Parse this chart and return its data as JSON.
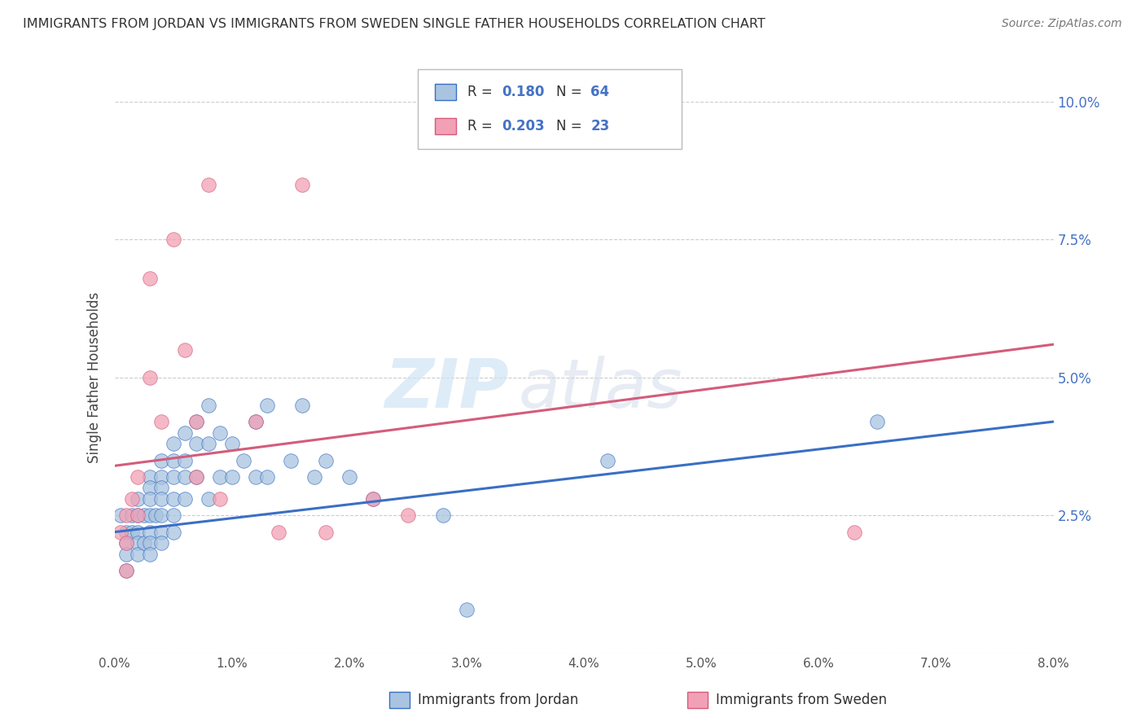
{
  "title": "IMMIGRANTS FROM JORDAN VS IMMIGRANTS FROM SWEDEN SINGLE FATHER HOUSEHOLDS CORRELATION CHART",
  "source": "Source: ZipAtlas.com",
  "ylabel": "Single Father Households",
  "legend_label_blue": "Immigrants from Jordan",
  "legend_label_pink": "Immigrants from Sweden",
  "legend_r_val_blue": "0.180",
  "legend_n_val_blue": "64",
  "legend_r_val_pink": "0.203",
  "legend_n_val_pink": "23",
  "xlim": [
    0.0,
    0.08
  ],
  "ylim": [
    0.0,
    0.1
  ],
  "xticks": [
    0.0,
    0.01,
    0.02,
    0.03,
    0.04,
    0.05,
    0.06,
    0.07,
    0.08
  ],
  "yticks": [
    0.0,
    0.025,
    0.05,
    0.075,
    0.1
  ],
  "xtick_labels": [
    "0.0%",
    "1.0%",
    "2.0%",
    "3.0%",
    "4.0%",
    "5.0%",
    "6.0%",
    "7.0%",
    "8.0%"
  ],
  "ytick_labels": [
    "",
    "2.5%",
    "5.0%",
    "7.5%",
    "10.0%"
  ],
  "color_blue": "#a8c4e0",
  "color_pink": "#f2a0b5",
  "line_color_blue": "#3a6fc4",
  "line_color_pink": "#d45c7a",
  "watermark_zip": "ZIP",
  "watermark_atlas": "atlas",
  "blue_scatter_x": [
    0.0005,
    0.001,
    0.001,
    0.001,
    0.001,
    0.0015,
    0.0015,
    0.002,
    0.002,
    0.002,
    0.002,
    0.002,
    0.0025,
    0.0025,
    0.003,
    0.003,
    0.003,
    0.003,
    0.003,
    0.003,
    0.003,
    0.0035,
    0.004,
    0.004,
    0.004,
    0.004,
    0.004,
    0.004,
    0.004,
    0.005,
    0.005,
    0.005,
    0.005,
    0.005,
    0.005,
    0.006,
    0.006,
    0.006,
    0.006,
    0.007,
    0.007,
    0.007,
    0.008,
    0.008,
    0.008,
    0.009,
    0.009,
    0.01,
    0.01,
    0.011,
    0.012,
    0.012,
    0.013,
    0.013,
    0.015,
    0.016,
    0.017,
    0.018,
    0.02,
    0.022,
    0.028,
    0.03,
    0.042,
    0.065
  ],
  "blue_scatter_y": [
    0.025,
    0.022,
    0.02,
    0.018,
    0.015,
    0.025,
    0.022,
    0.028,
    0.025,
    0.022,
    0.02,
    0.018,
    0.025,
    0.02,
    0.032,
    0.03,
    0.028,
    0.025,
    0.022,
    0.02,
    0.018,
    0.025,
    0.035,
    0.032,
    0.03,
    0.028,
    0.025,
    0.022,
    0.02,
    0.038,
    0.035,
    0.032,
    0.028,
    0.025,
    0.022,
    0.04,
    0.035,
    0.032,
    0.028,
    0.042,
    0.038,
    0.032,
    0.045,
    0.038,
    0.028,
    0.04,
    0.032,
    0.038,
    0.032,
    0.035,
    0.042,
    0.032,
    0.045,
    0.032,
    0.035,
    0.045,
    0.032,
    0.035,
    0.032,
    0.028,
    0.025,
    0.008,
    0.035,
    0.042
  ],
  "pink_scatter_x": [
    0.0005,
    0.001,
    0.001,
    0.001,
    0.0015,
    0.002,
    0.002,
    0.003,
    0.003,
    0.004,
    0.005,
    0.006,
    0.007,
    0.007,
    0.008,
    0.009,
    0.012,
    0.014,
    0.016,
    0.018,
    0.022,
    0.025,
    0.063
  ],
  "pink_scatter_y": [
    0.022,
    0.025,
    0.02,
    0.015,
    0.028,
    0.032,
    0.025,
    0.068,
    0.05,
    0.042,
    0.075,
    0.055,
    0.042,
    0.032,
    0.085,
    0.028,
    0.042,
    0.022,
    0.085,
    0.022,
    0.028,
    0.025,
    0.022
  ],
  "regression_blue_x0": 0.0,
  "regression_blue_y0": 0.022,
  "regression_blue_x1": 0.08,
  "regression_blue_y1": 0.042,
  "regression_pink_x0": 0.0,
  "regression_pink_y0": 0.034,
  "regression_pink_x1": 0.08,
  "regression_pink_y1": 0.056
}
